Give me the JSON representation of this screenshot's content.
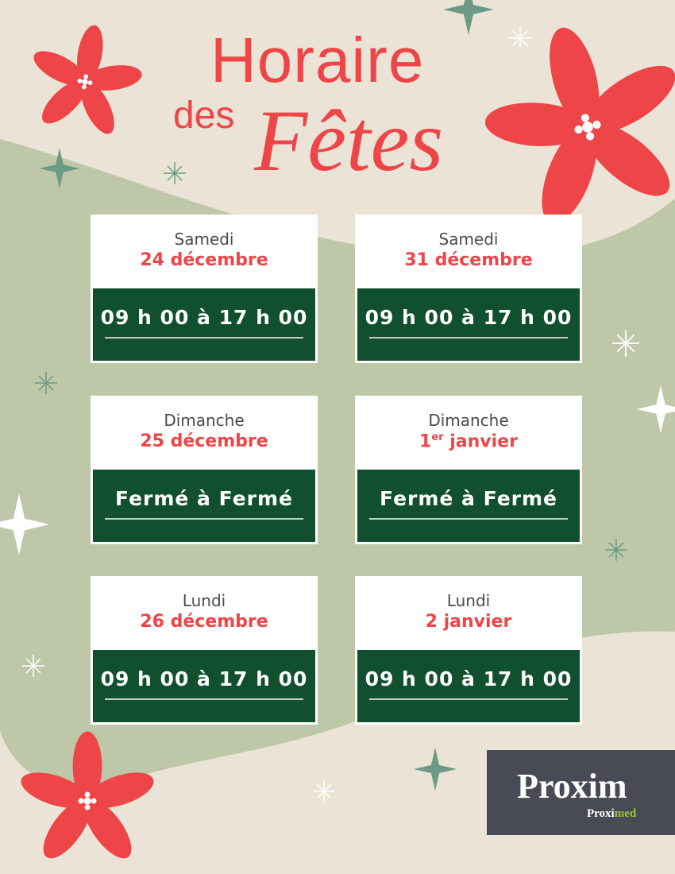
{
  "title": {
    "line1": "Horaire",
    "line2": "des",
    "line3": "Fêtes"
  },
  "colors": {
    "red": "#ee4548",
    "green": "#10502f",
    "beige": "#ebe4d6",
    "sage": "#bec8a8",
    "logo_bg": "#484b55"
  },
  "cards": [
    {
      "day": "Samedi",
      "date": "24 décembre",
      "hours": "09 h 00 à 17 h 00"
    },
    {
      "day": "Samedi",
      "date": "31 décembre",
      "hours": "09 h 00 à 17 h 00"
    },
    {
      "day": "Dimanche",
      "date": "25 décembre",
      "hours": "Fermé à Fermé"
    },
    {
      "day": "Dimanche",
      "date_num": "1",
      "date_sup": "er",
      "date_rest": " janvier",
      "hours": "Fermé à Fermé"
    },
    {
      "day": "Lundi",
      "date": "26 décembre",
      "hours": "09 h 00 à 17 h 00"
    },
    {
      "day": "Lundi",
      "date": "2 janvier",
      "hours": "09 h 00 à 17 h 00"
    }
  ],
  "logo": {
    "brand": "Proxim",
    "sub_brand_a": "Proxi",
    "sub_brand_b": "med"
  }
}
